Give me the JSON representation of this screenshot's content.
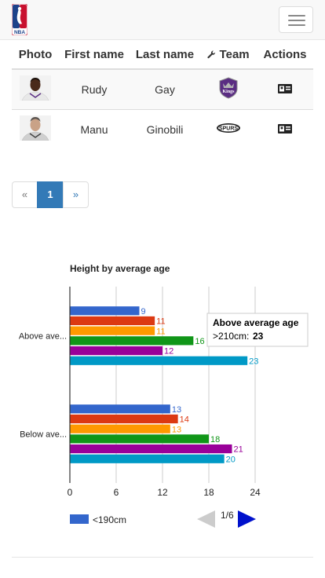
{
  "navbar": {
    "logo_text": "NBA",
    "menu_icon": "hamburger-icon"
  },
  "table": {
    "headers": {
      "photo": "Photo",
      "first_name": "First name",
      "last_name": "Last name",
      "team_icon": "wrench-icon",
      "team": "Team",
      "actions": "Actions"
    },
    "rows": [
      {
        "first_name": "Rudy",
        "last_name": "Gay",
        "team_logo": "kings-logo",
        "team_logo_text": "Kings",
        "action_icon": "id-card-icon"
      },
      {
        "first_name": "Manu",
        "last_name": "Ginobili",
        "team_logo": "spurs-logo",
        "team_logo_text": "SPURS",
        "action_icon": "id-card-icon"
      }
    ]
  },
  "pagination": {
    "prev": "«",
    "current": "1",
    "next": "»"
  },
  "chart_data": {
    "type": "bar",
    "orientation": "horizontal",
    "title": "Height by average age",
    "categories": [
      "Above ave...",
      "Below ave..."
    ],
    "series": [
      {
        "color": "#3366cc",
        "values": [
          9,
          13
        ]
      },
      {
        "color": "#dc3912",
        "values": [
          11,
          14
        ]
      },
      {
        "color": "#ff9900",
        "values": [
          11,
          13
        ]
      },
      {
        "color": "#109618",
        "values": [
          16,
          18
        ]
      },
      {
        "color": "#990099",
        "values": [
          12,
          21
        ]
      },
      {
        "color": "#0099c6",
        "values": [
          23,
          20
        ]
      }
    ],
    "xlim": [
      0,
      24
    ],
    "xticks": [
      "0",
      "6",
      "12",
      "18",
      "24"
    ],
    "grid": true,
    "legend": {
      "placement": "bottom-left",
      "visible_entry": "<190cm",
      "visible_color": "#3366cc",
      "page": "1/6"
    },
    "tooltip": {
      "title": "Above average age",
      "label": ">210cm:",
      "value": "23"
    }
  }
}
